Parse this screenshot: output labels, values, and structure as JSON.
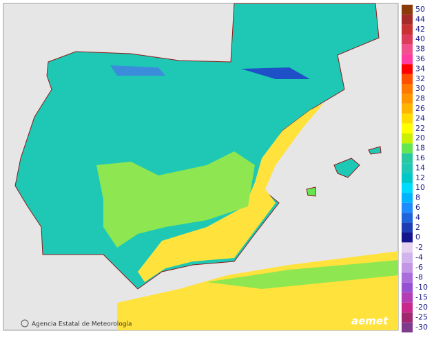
{
  "footer": {
    "agency": "Agencia Estatal de Meteorología",
    "logo": "aemet"
  },
  "legend": {
    "positive": [
      {
        "value": 50,
        "color": "#8b3a0a"
      },
      {
        "value": 44,
        "color": "#a52a2a"
      },
      {
        "value": 42,
        "color": "#c83232"
      },
      {
        "value": 40,
        "color": "#dc3c5a"
      },
      {
        "value": 38,
        "color": "#f0508c"
      },
      {
        "value": 36,
        "color": "#ff3ca0"
      },
      {
        "value": 34,
        "color": "#ff0000"
      },
      {
        "value": 32,
        "color": "#ff5000"
      },
      {
        "value": 30,
        "color": "#ff7800"
      },
      {
        "value": 28,
        "color": "#ff9600"
      },
      {
        "value": 26,
        "color": "#ffb400"
      },
      {
        "value": 24,
        "color": "#ffdc00"
      },
      {
        "value": 22,
        "color": "#ffff00"
      },
      {
        "value": 20,
        "color": "#c8f000"
      },
      {
        "value": 18,
        "color": "#64e650"
      },
      {
        "value": 16,
        "color": "#28c8a0"
      },
      {
        "value": 14,
        "color": "#1ec8b4"
      },
      {
        "value": 12,
        "color": "#00c8c8"
      },
      {
        "value": 10,
        "color": "#00dcff"
      },
      {
        "value": 8,
        "color": "#00b4ff"
      },
      {
        "value": 6,
        "color": "#1e8cff"
      },
      {
        "value": 4,
        "color": "#1e64dc"
      },
      {
        "value": 2,
        "color": "#1e3cb4"
      },
      {
        "value": 0,
        "color": "#14148c"
      }
    ],
    "negative": [
      {
        "value": -2,
        "color": "#e6d2f0"
      },
      {
        "value": -4,
        "color": "#d2b4ec"
      },
      {
        "value": -6,
        "color": "#c396e6"
      },
      {
        "value": -8,
        "color": "#aa6edc"
      },
      {
        "value": -10,
        "color": "#9650d2"
      },
      {
        "value": -15,
        "color": "#b43cb4"
      },
      {
        "value": -20,
        "color": "#c8288c"
      },
      {
        "value": -25,
        "color": "#a0286e"
      },
      {
        "value": -30,
        "color": "#7f3c8c"
      }
    ]
  }
}
